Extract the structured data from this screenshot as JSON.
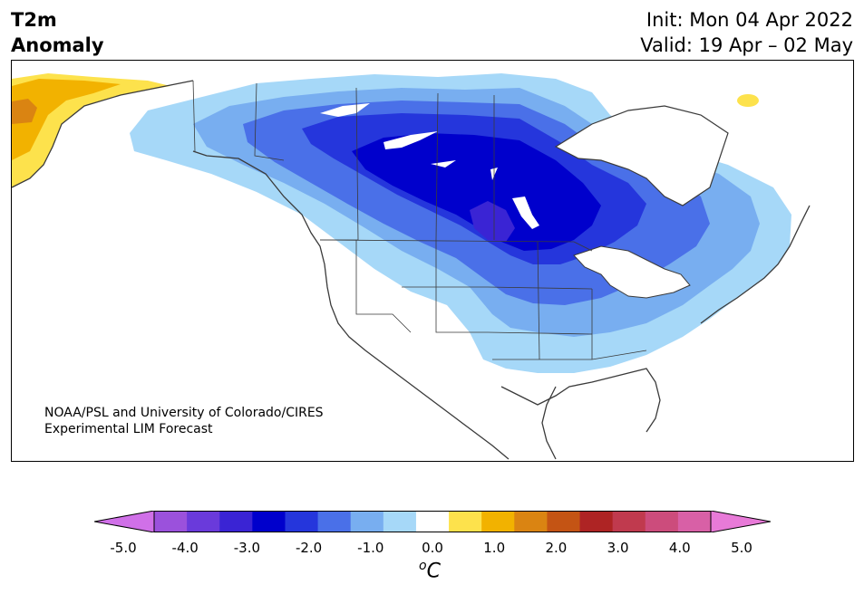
{
  "title": {
    "line1": "T2m",
    "line2": "Anomaly"
  },
  "header": {
    "init": "Init: Mon 04 Apr 2022",
    "valid": "Valid: 19 Apr – 02 May"
  },
  "credit": {
    "line1": "NOAA/PSL and University of Colorado/CIRES",
    "line2": "Experimental LIM Forecast"
  },
  "colorbar": {
    "unit_superscript": "o",
    "unit": "C",
    "ticks": [
      "-5.0",
      "-4.0",
      "-3.0",
      "-2.0",
      "-1.0",
      "0.0",
      "1.0",
      "2.0",
      "3.0",
      "4.0",
      "5.0"
    ],
    "under_color": "#d070e8",
    "over_color": "#e87ad8",
    "bins": [
      {
        "range": "-5.0 to -4.5",
        "color": "#d070e8"
      },
      {
        "range": "-4.5 to -4.0",
        "color": "#9b51dc"
      },
      {
        "range": "-4.0 to -3.5",
        "color": "#6a3adb"
      },
      {
        "range": "-3.5 to -3.0",
        "color": "#3a24d4"
      },
      {
        "range": "-3.0 to -2.5",
        "color": "#0000cc"
      },
      {
        "range": "-2.5 to -2.0",
        "color": "#2536dc"
      },
      {
        "range": "-2.0 to -1.5",
        "color": "#4a70e8"
      },
      {
        "range": "-1.5 to -1.0",
        "color": "#78aef0"
      },
      {
        "range": "-1.0 to -0.5",
        "color": "#a6d8f8"
      },
      {
        "range": "-0.5 to 0.5",
        "color": "#ffffff"
      },
      {
        "range": "0.5 to 1.0",
        "color": "#fde24c"
      },
      {
        "range": "1.0 to 1.5",
        "color": "#f2b200"
      },
      {
        "range": "1.5 to 2.0",
        "color": "#da8412"
      },
      {
        "range": "2.0 to 2.5",
        "color": "#c45414"
      },
      {
        "range": "2.5 to 3.0",
        "color": "#ae2424"
      },
      {
        "range": "3.0 to 3.5",
        "color": "#c03a4e"
      },
      {
        "range": "3.5 to 4.0",
        "color": "#cc4c7c"
      },
      {
        "range": "4.0 to 4.5",
        "color": "#d860a6"
      },
      {
        "range": "4.5 to 5.0",
        "color": "#e87ad8"
      }
    ]
  },
  "map": {
    "region": "North America",
    "border_color": "#3a3a3a",
    "anomaly_features": [
      {
        "where": "central Canada (Saskatchewan/Manitoba) core",
        "level": "-3.0 to -3.5"
      },
      {
        "where": "Prairies, Northern Plains, Hudson Bay region",
        "level": "-2.0 to -3.0"
      },
      {
        "where": "Upper Midwest, Great Lakes, Quebec",
        "level": "-1.0 to -2.0"
      },
      {
        "where": "Central Plains, Ohio Valley, Northeast, Pacific Northwest interior",
        "level": "-0.5 to -1.0"
      },
      {
        "where": "Alaska west coast",
        "level": "0.5 to 1.5"
      },
      {
        "where": "Greenland small spot",
        "level": "0.5 to 1.0"
      }
    ]
  }
}
